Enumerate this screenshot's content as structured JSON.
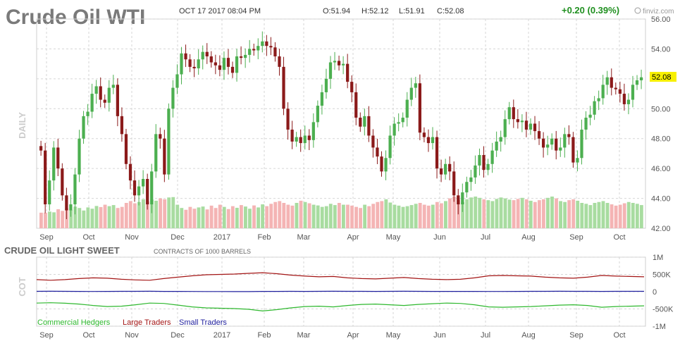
{
  "header": {
    "title": "Crude Oil WTI",
    "datetime": "OCT 17 2017 08:04 PM",
    "open": "O:51.94",
    "high": "H:52.12",
    "low": "L:51.91",
    "close": "C:52.08",
    "change": "+0.20 (0.39%)",
    "brand": "finviz.com"
  },
  "colors": {
    "up": "#4caf50",
    "down": "#8b1a1a",
    "vol_up": "#a8dca0",
    "vol_down": "#f4b4b4",
    "commercial": "#2eb82e",
    "large": "#a31515",
    "small": "#1f1f9e",
    "price_highlight": "#f7f000",
    "change": "#1f8f1f"
  },
  "chart_data": [
    {
      "type": "candlestick",
      "ylabel": "DAILY",
      "ylim": [
        42,
        56
      ],
      "y_ticks": [
        "56.00",
        "54.00",
        "52.00",
        "50.00",
        "48.00",
        "46.00",
        "44.00",
        "42.00"
      ],
      "x_ticks": [
        "Sep",
        "Oct",
        "Nov",
        "Dec",
        "2017",
        "Feb",
        "Mar",
        "Apr",
        "May",
        "Jun",
        "Jul",
        "Aug",
        "Sep",
        "Oct"
      ],
      "last_price": "52.08",
      "closes": [
        47.2,
        43.6,
        45.2,
        47.4,
        46.0,
        44.2,
        43.2,
        43.6,
        45.6,
        48.0,
        49.5,
        49.8,
        51.0,
        51.5,
        50.6,
        50.4,
        51.4,
        51.6,
        49.5,
        48.3,
        46.3,
        45.2,
        44.2,
        44.8,
        45.3,
        43.6,
        45.8,
        48.3,
        48.0,
        45.6,
        50.0,
        51.4,
        52.3,
        53.7,
        53.3,
        52.8,
        52.7,
        53.3,
        53.8,
        53.5,
        53.1,
        52.9,
        52.6,
        53.4,
        52.8,
        52.4,
        53.5,
        53.4,
        53.6,
        54.0,
        53.9,
        54.2,
        54.5,
        54.2,
        54.1,
        53.5,
        52.8,
        50.0,
        48.6,
        47.8,
        48.1,
        47.7,
        48.2,
        47.9,
        49.1,
        50.2,
        51.1,
        52.0,
        53.1,
        53.2,
        52.9,
        53.0,
        51.8,
        51.1,
        49.4,
        48.8,
        49.5,
        48.2,
        47.4,
        46.8,
        45.8,
        46.7,
        48.2,
        49.0,
        49.1,
        49.4,
        50.6,
        51.4,
        51.7,
        48.4,
        48.1,
        47.7,
        48.1,
        46.0,
        45.6,
        46.3,
        45.8,
        44.2,
        43.6,
        44.4,
        45.1,
        45.4,
        46.2,
        46.9,
        45.9,
        46.3,
        47.2,
        47.8,
        48.1,
        49.3,
        50.1,
        49.3,
        49.1,
        49.2,
        48.6,
        49.0,
        48.5,
        48.0,
        47.4,
        47.6,
        48.0,
        47.2,
        47.4,
        48.3,
        48.1,
        46.4,
        46.7,
        48.6,
        49.4,
        49.6,
        50.5,
        50.7,
        51.6,
        52.1,
        51.4,
        51.3,
        51.0,
        50.3,
        50.6,
        51.6,
        51.9,
        52.1
      ],
      "volume": {
        "label": "Volume",
        "values": [
          86,
          92,
          88,
          105,
          96,
          110,
          102,
          120,
          112,
          98,
          115,
          108,
          123,
          117,
          130,
          122,
          128,
          112,
          118,
          140,
          150,
          138,
          145,
          160,
          148,
          158,
          152,
          165,
          160,
          170,
          172,
          130,
          112,
          102,
          118,
          108,
          115,
          120,
          104,
          125,
          112,
          130,
          118,
          106,
          122,
          113,
          128,
          120,
          108,
          126,
          115,
          132,
          122,
          135,
          145,
          150,
          140,
          130,
          125,
          140,
          152,
          145,
          138,
          130,
          126,
          118,
          122,
          135,
          128,
          140,
          130,
          125,
          118,
          112,
          130,
          122,
          135,
          145,
          150,
          160,
          142,
          130,
          125,
          118,
          122,
          128,
          135,
          140,
          130,
          125,
          130,
          145,
          138,
          150,
          165,
          175,
          158,
          145,
          160,
          170,
          175,
          168,
          160,
          155,
          150,
          162,
          170,
          165,
          158,
          155,
          162,
          168,
          160,
          152,
          145,
          155,
          160,
          168,
          175,
          165,
          150,
          145,
          155,
          160,
          152,
          140,
          135,
          128,
          140,
          145,
          150,
          140,
          132,
          125,
          130,
          138,
          145,
          140,
          135,
          128
        ]
      }
    },
    {
      "type": "line",
      "title": "CRUDE OIL LIGHT SWEET",
      "subtitle": "CONTRACTS OF 1000 BARRELS",
      "ylabel": "COT",
      "ylim": [
        -1000000,
        1000000
      ],
      "y_ticks": [
        "1M",
        "500K",
        "0",
        "-500K",
        "-1M"
      ],
      "x_ticks": [
        "Sep",
        "Oct",
        "Nov",
        "Dec",
        "2017",
        "Feb",
        "Mar",
        "Apr",
        "May",
        "Jun",
        "Jul",
        "Aug",
        "Sep",
        "Oct"
      ],
      "series": [
        {
          "name": "Commercial Hedgers",
          "values": [
            -330000,
            -320000,
            -335000,
            -360000,
            -400000,
            -430000,
            -420000,
            -380000,
            -330000,
            -340000,
            -390000,
            -440000,
            -470000,
            -480000,
            -490000,
            -510000,
            -560000,
            -520000,
            -470000,
            -430000,
            -420000,
            -440000,
            -400000,
            -370000,
            -360000,
            -380000,
            -400000,
            -370000,
            -350000,
            -330000,
            -340000,
            -380000,
            -440000,
            -450000,
            -440000,
            -430000,
            -410000,
            -390000,
            -380000,
            -400000,
            -450000,
            -430000,
            -420000,
            -410000
          ]
        },
        {
          "name": "Large Traders",
          "values": [
            350000,
            330000,
            350000,
            380000,
            400000,
            390000,
            360000,
            340000,
            330000,
            380000,
            420000,
            460000,
            490000,
            500000,
            510000,
            530000,
            550000,
            520000,
            480000,
            450000,
            430000,
            440000,
            400000,
            380000,
            370000,
            390000,
            410000,
            380000,
            360000,
            350000,
            360000,
            400000,
            460000,
            470000,
            460000,
            450000,
            420000,
            400000,
            390000,
            420000,
            470000,
            450000,
            440000,
            430000
          ]
        },
        {
          "name": "Small Traders",
          "values": [
            10000,
            12000,
            10000,
            8000,
            6000,
            9000,
            10000,
            11000,
            12000,
            9000,
            8000,
            7000,
            5000,
            4000,
            3000,
            2000,
            8000,
            9000,
            10000,
            8000,
            10000,
            12000,
            11000,
            10000,
            9000,
            10000,
            12000,
            11000,
            9000,
            8000,
            9000,
            8000,
            6000,
            7000,
            8000,
            10000,
            11000,
            12000,
            11000,
            10000,
            9000,
            10000,
            11000,
            10000
          ]
        }
      ]
    }
  ]
}
